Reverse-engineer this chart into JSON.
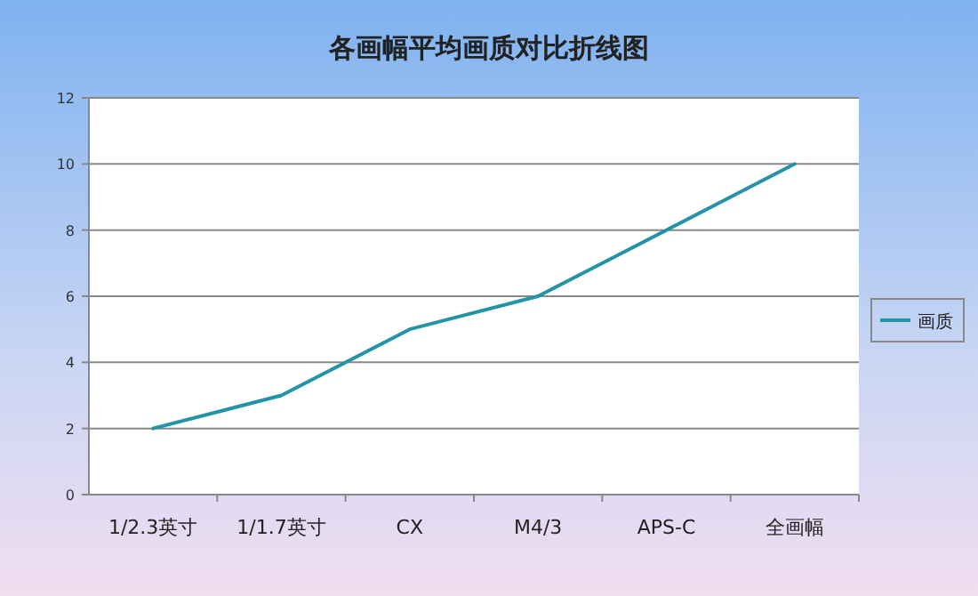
{
  "chart_data": {
    "type": "line",
    "title": "各画幅平均画质对比折线图",
    "categories": [
      "1/2.3英寸",
      "1/1.7英寸",
      "CX",
      "M4/3",
      "APS-C",
      "全画幅"
    ],
    "series": [
      {
        "name": "画质",
        "color": "#2393a6",
        "values": [
          2,
          3,
          5,
          6,
          8,
          10
        ]
      }
    ],
    "ylim": [
      0,
      12
    ],
    "yticks": [
      0,
      2,
      4,
      6,
      8,
      10,
      12
    ],
    "grid": "y",
    "legend": "right"
  }
}
